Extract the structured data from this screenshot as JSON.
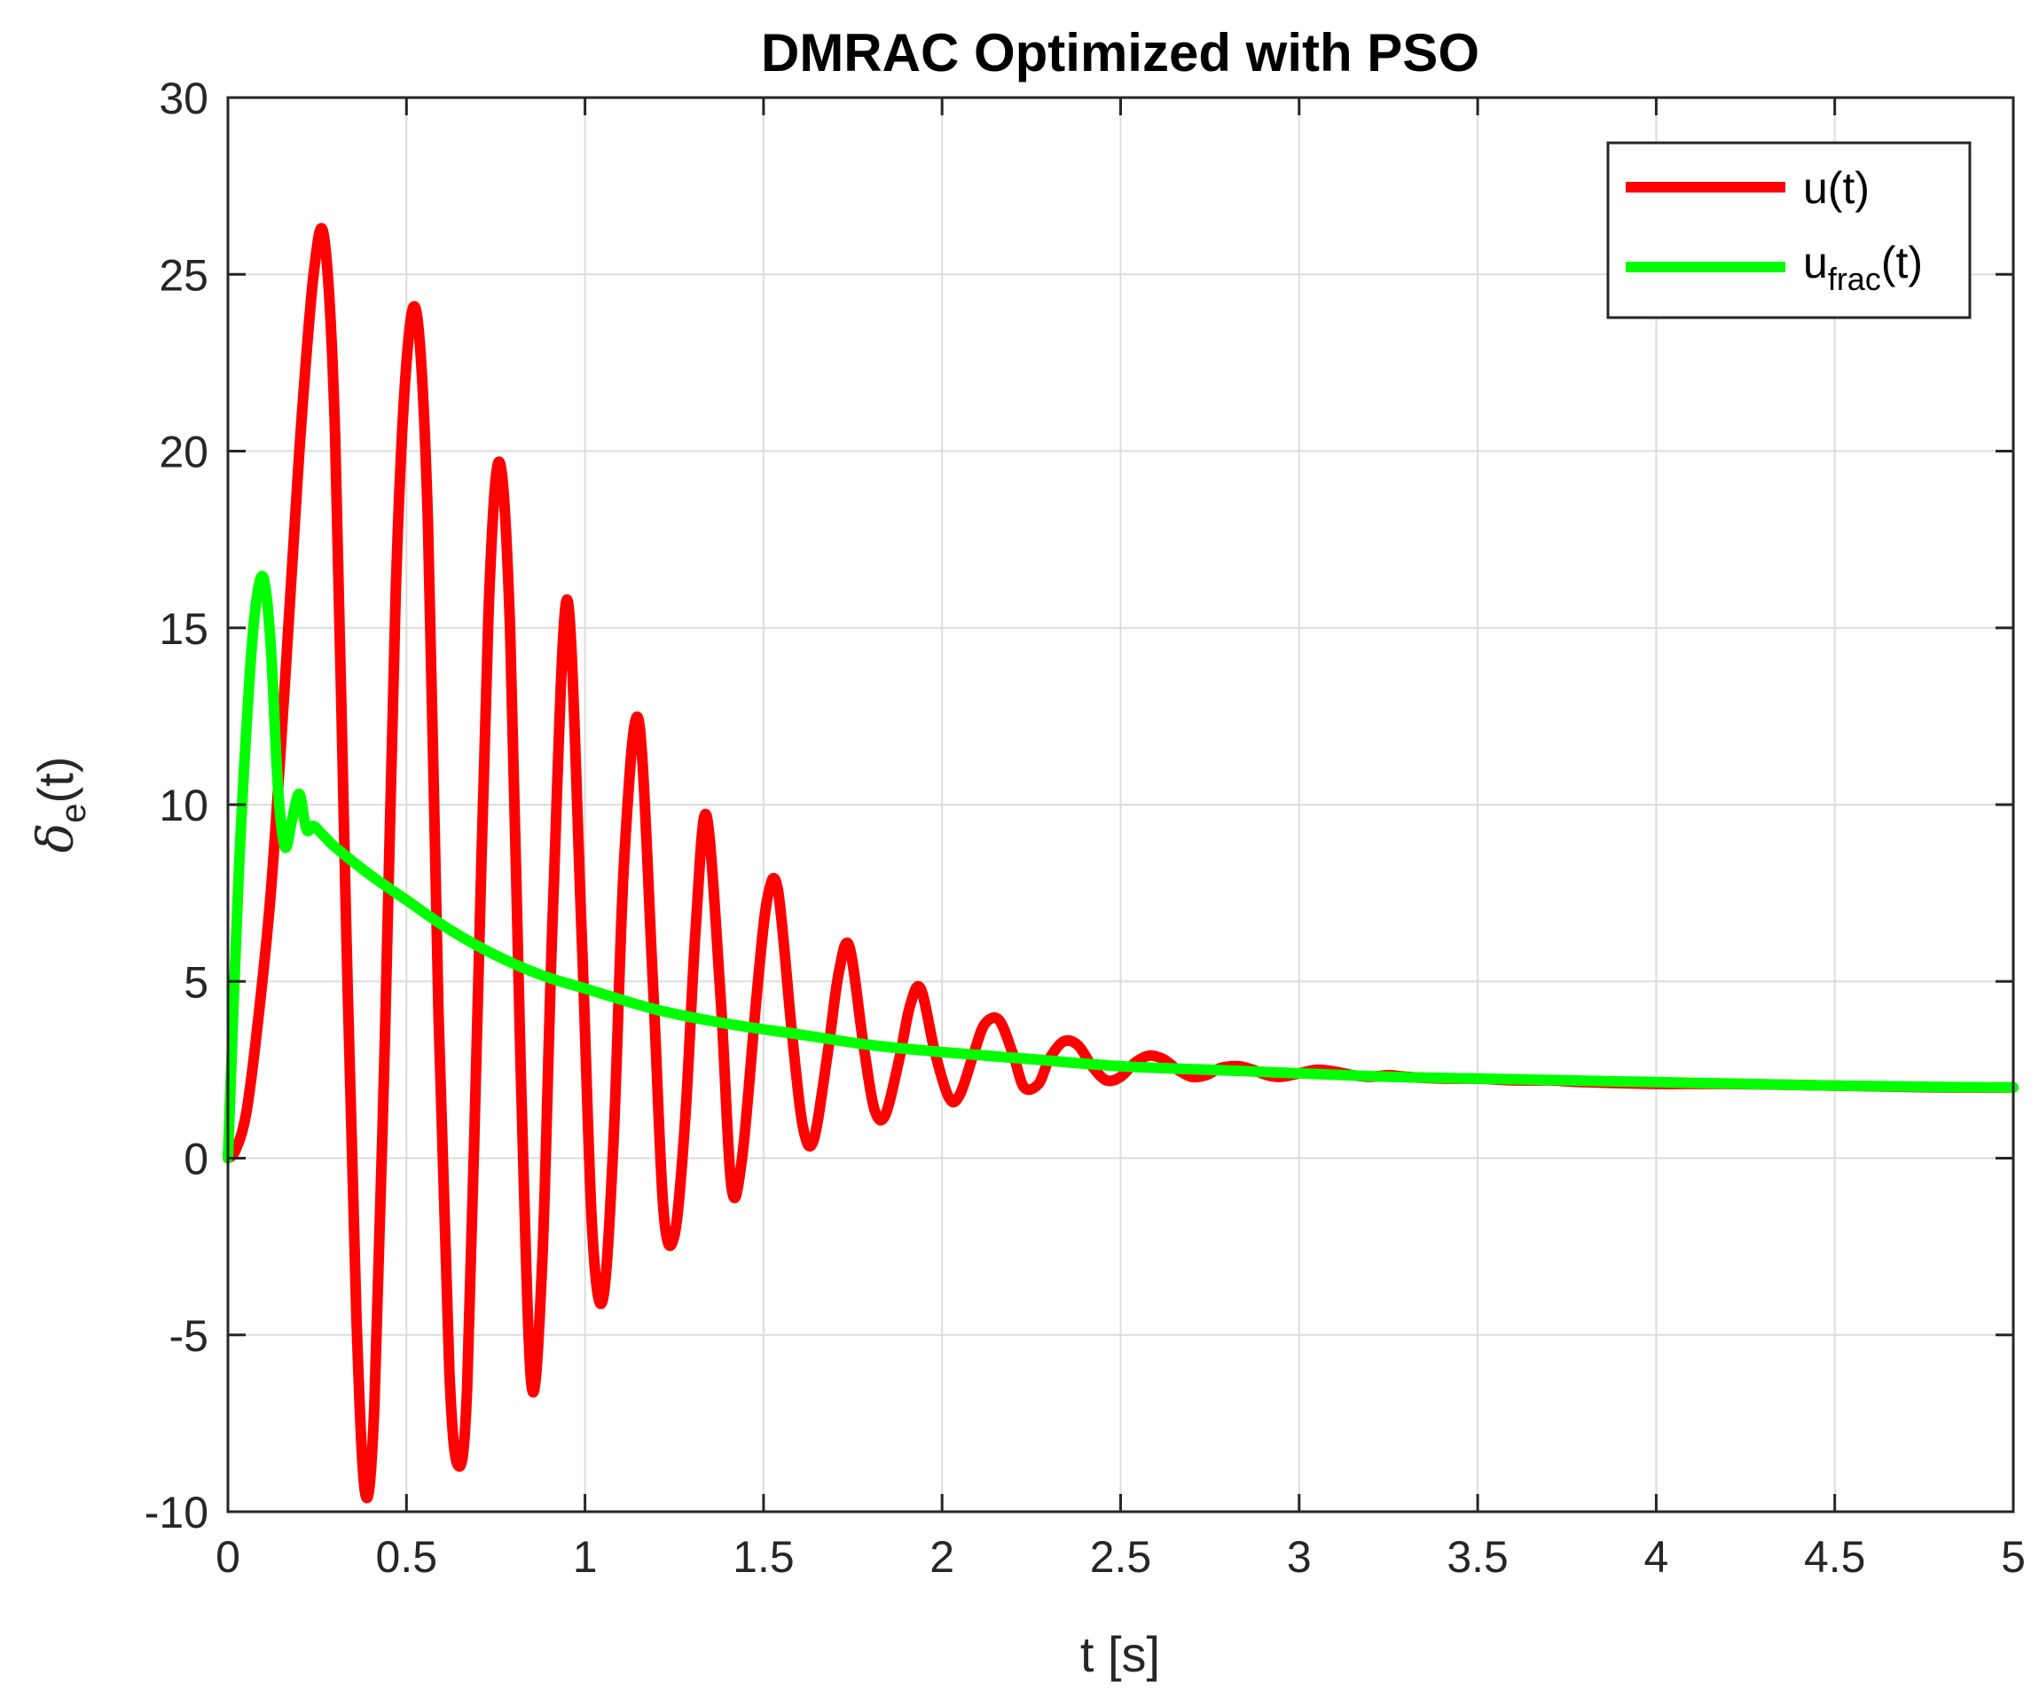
{
  "chart_data": {
    "type": "line",
    "title": "DMRAC Optimized with PSO",
    "xlabel": "t [s]",
    "ylabel": {
      "symbol": "δ",
      "subscript": "e",
      "suffix": "(t)"
    },
    "xlim": [
      0,
      5
    ],
    "ylim": [
      -10,
      30
    ],
    "xticks": [
      0,
      0.5,
      1,
      1.5,
      2,
      2.5,
      3,
      3.5,
      4,
      4.5,
      5
    ],
    "xtick_labels": [
      "0",
      "0.5",
      "1",
      "1.5",
      "2",
      "2.5",
      "3",
      "3.5",
      "4",
      "4.5",
      "5"
    ],
    "yticks": [
      -10,
      -5,
      0,
      5,
      10,
      15,
      20,
      25,
      30
    ],
    "ytick_labels": [
      "-10",
      "-5",
      "0",
      "5",
      "10",
      "15",
      "20",
      "25",
      "30"
    ],
    "grid": true,
    "legend_position": "top-right",
    "series": [
      {
        "name": "u(t)",
        "legend_main": "u",
        "legend_sub": "",
        "legend_suffix": "(t)",
        "color": "#ff0000",
        "x": [
          0,
          0.02,
          0.05,
          0.08,
          0.12,
          0.16,
          0.2,
          0.24,
          0.27,
          0.3,
          0.33,
          0.36,
          0.385,
          0.41,
          0.44,
          0.47,
          0.5,
          0.53,
          0.56,
          0.59,
          0.62,
          0.645,
          0.67,
          0.7,
          0.73,
          0.76,
          0.79,
          0.82,
          0.85,
          0.88,
          0.91,
          0.95,
          0.99,
          1.02,
          1.05,
          1.08,
          1.11,
          1.15,
          1.19,
          1.22,
          1.25,
          1.28,
          1.31,
          1.34,
          1.38,
          1.41,
          1.44,
          1.48,
          1.51,
          1.54,
          1.58,
          1.61,
          1.64,
          1.68,
          1.71,
          1.74,
          1.78,
          1.81,
          1.84,
          1.88,
          1.91,
          1.94,
          1.98,
          2.02,
          2.05,
          2.09,
          2.12,
          2.16,
          2.2,
          2.23,
          2.27,
          2.3,
          2.34,
          2.38,
          2.42,
          2.46,
          2.5,
          2.54,
          2.58,
          2.62,
          2.66,
          2.7,
          2.74,
          2.78,
          2.83,
          2.87,
          2.91,
          2.95,
          3.0,
          3.05,
          3.1,
          3.15,
          3.2,
          3.25,
          3.3,
          3.4,
          3.5,
          3.6,
          3.7,
          3.8,
          4.0,
          4.2,
          4.5,
          4.8,
          5.0
        ],
        "y": [
          0,
          0.2,
          1.2,
          3.5,
          7.5,
          13.5,
          20.0,
          25.0,
          26.0,
          20.5,
          7.0,
          -4.5,
          -9.5,
          -7.0,
          3.5,
          16.0,
          22.5,
          23.8,
          18.0,
          4.0,
          -6.0,
          -8.7,
          -6.5,
          4.5,
          15.5,
          19.7,
          15.0,
          2.5,
          -6.4,
          -3.0,
          7.0,
          15.8,
          6.5,
          -2.0,
          -4.0,
          0.5,
          8.5,
          12.4,
          5.0,
          -1.5,
          -2.2,
          1.0,
          6.5,
          9.7,
          4.5,
          -0.8,
          0.0,
          4.5,
          7.3,
          7.6,
          3.5,
          0.9,
          0.5,
          3.0,
          5.2,
          6.0,
          3.2,
          1.4,
          1.2,
          2.8,
          4.3,
          4.8,
          3.0,
          1.7,
          1.8,
          3.0,
          3.8,
          3.9,
          2.9,
          2.0,
          2.1,
          2.8,
          3.3,
          3.2,
          2.6,
          2.2,
          2.3,
          2.7,
          2.9,
          2.8,
          2.5,
          2.3,
          2.35,
          2.55,
          2.6,
          2.5,
          2.35,
          2.3,
          2.4,
          2.5,
          2.45,
          2.35,
          2.3,
          2.35,
          2.3,
          2.25,
          2.25,
          2.2,
          2.2,
          2.15,
          2.1,
          2.1,
          2.05,
          2.0,
          2.0
        ]
      },
      {
        "name": "u_frac(t)",
        "legend_main": "u",
        "legend_sub": "frac",
        "legend_suffix": "(t)",
        "color": "#00ff00",
        "x": [
          0,
          0.03,
          0.06,
          0.08,
          0.1,
          0.12,
          0.14,
          0.16,
          0.18,
          0.2,
          0.22,
          0.24,
          0.26,
          0.28,
          0.3,
          0.4,
          0.5,
          0.6,
          0.7,
          0.8,
          0.9,
          1.0,
          1.2,
          1.4,
          1.6,
          1.8,
          2.0,
          2.25,
          2.5,
          2.75,
          3.0,
          3.25,
          3.5,
          3.75,
          4.0,
          4.25,
          4.5,
          4.75,
          5.0
        ],
        "y": [
          0,
          8.0,
          13.5,
          15.8,
          16.4,
          14.5,
          10.5,
          8.8,
          9.6,
          10.3,
          9.3,
          9.4,
          9.2,
          9.0,
          8.8,
          8.0,
          7.3,
          6.6,
          6.0,
          5.5,
          5.1,
          4.8,
          4.2,
          3.8,
          3.5,
          3.2,
          3.0,
          2.8,
          2.6,
          2.5,
          2.4,
          2.3,
          2.25,
          2.2,
          2.15,
          2.1,
          2.05,
          2.02,
          2.0
        ]
      }
    ]
  }
}
